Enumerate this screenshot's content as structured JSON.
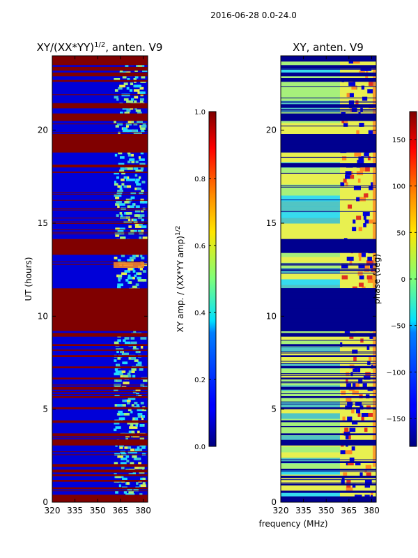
{
  "suptitle": "2016-06-28 0.0-24.0",
  "xlabel": "frequency (MHz)",
  "colors": {
    "red": "#800000",
    "blue": "#0000d8",
    "navy": "#00008f",
    "cyan": "#22d8ff",
    "teal": "#40c0d0",
    "yellow": "#e8f050",
    "green": "#a0f080",
    "orange": "#ff8a20"
  },
  "chart_data": [
    {
      "type": "heatmap",
      "title_prefix": "XY/(XX*YY)",
      "title_exp": "1/2",
      "title_suffix": ", anten. V9",
      "ylabel": "UT (hours)",
      "xlim": [
        320,
        383
      ],
      "ylim": [
        0,
        24
      ],
      "xticks": [
        "320",
        "335",
        "350",
        "365",
        "380"
      ],
      "yticks": [
        "0",
        "5",
        "10",
        "15",
        "20"
      ],
      "colorbar": {
        "label_prefix": "XY amp. / (XX*YY amp)",
        "label_exp": "1/2",
        "range": [
          0.0,
          1.0
        ],
        "ticks": [
          "0.0",
          "0.2",
          "0.4",
          "0.6",
          "0.8",
          "1.0"
        ]
      }
    },
    {
      "type": "heatmap",
      "title": "XY, anten. V9",
      "ylabel": "",
      "xlim": [
        320,
        383
      ],
      "ylim": [
        0,
        24
      ],
      "xticks": [
        "320",
        "335",
        "350",
        "365",
        "380"
      ],
      "yticks": [
        "0",
        "5",
        "10",
        "15",
        "20"
      ],
      "colorbar": {
        "label": "phase (deg)",
        "range": [
          -180,
          180
        ],
        "ticks": [
          "−150",
          "−100",
          "−50",
          "0",
          "50",
          "100",
          "150"
        ]
      }
    }
  ]
}
